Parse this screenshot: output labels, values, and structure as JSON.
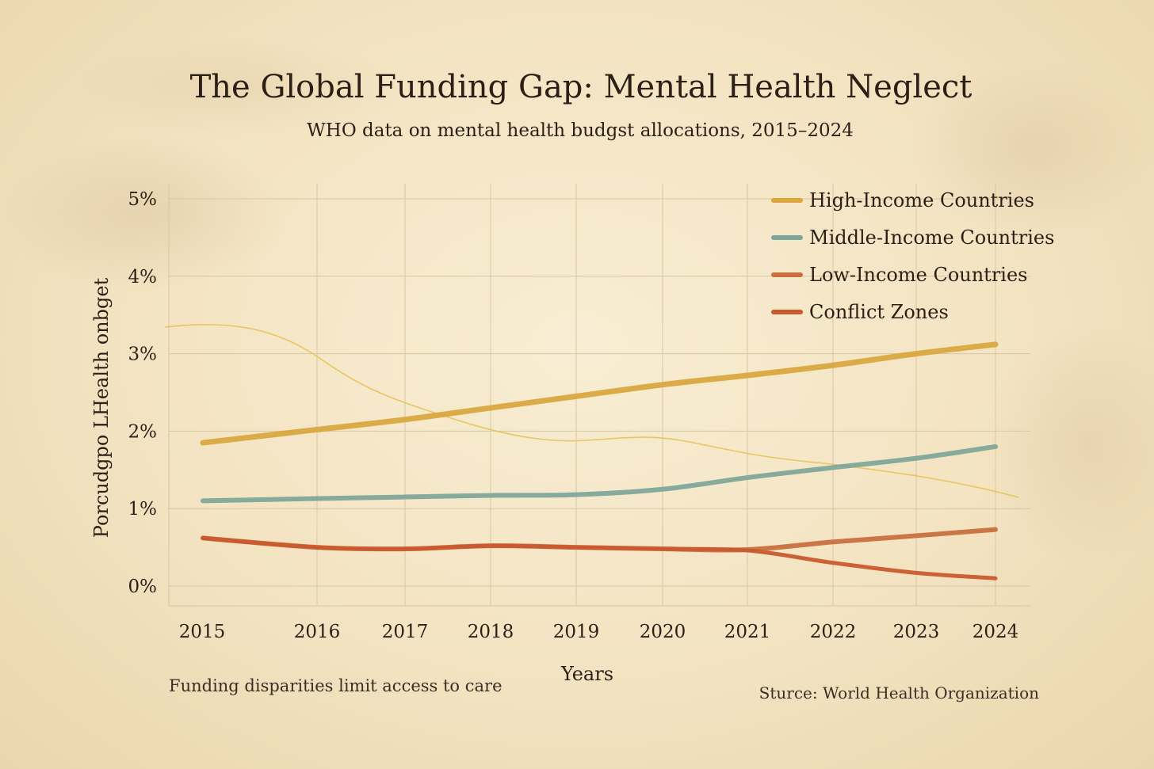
{
  "chart_data": {
    "type": "line",
    "title": "The Global Funding Gap: Mental Health Neglect",
    "subtitle": "WHO data on mental health budgst allocations, 2015–2024",
    "xlabel": "Years",
    "ylabel": "Porcudgpo LHealth onbget",
    "x": [
      "2015",
      "2016",
      "2017",
      "2018",
      "2019",
      "2020",
      "2021",
      "2022",
      "2023",
      "2024"
    ],
    "y_ticks": [
      "0%",
      "1%",
      "2%",
      "3%",
      "4%",
      "5%"
    ],
    "ylim": [
      0,
      5
    ],
    "grid": true,
    "legend_position": "top-right",
    "series": [
      {
        "name": "High-Income Countries",
        "color": "#d8a83f",
        "values": [
          1.85,
          2.02,
          2.15,
          2.3,
          2.45,
          2.6,
          2.72,
          2.85,
          3.0,
          3.12
        ]
      },
      {
        "name": "Middle-Income Countries",
        "color": "#7fa69a",
        "values": [
          1.1,
          1.13,
          1.15,
          1.17,
          1.18,
          1.25,
          1.4,
          1.53,
          1.65,
          1.8
        ]
      },
      {
        "name": "Low-Income Countries",
        "color": "#c8703f",
        "values": [
          0.62,
          0.5,
          0.48,
          0.52,
          0.5,
          0.48,
          0.47,
          0.57,
          0.65,
          0.73
        ]
      },
      {
        "name": "Conflict Zones",
        "color": "#c95a2f",
        "values": [
          0.62,
          0.5,
          0.48,
          0.52,
          0.5,
          0.48,
          0.46,
          0.3,
          0.17,
          0.1
        ]
      }
    ],
    "annotations": {
      "note": "Funding disparities limit access to care",
      "source": "Sturce: World Health Organization"
    }
  }
}
